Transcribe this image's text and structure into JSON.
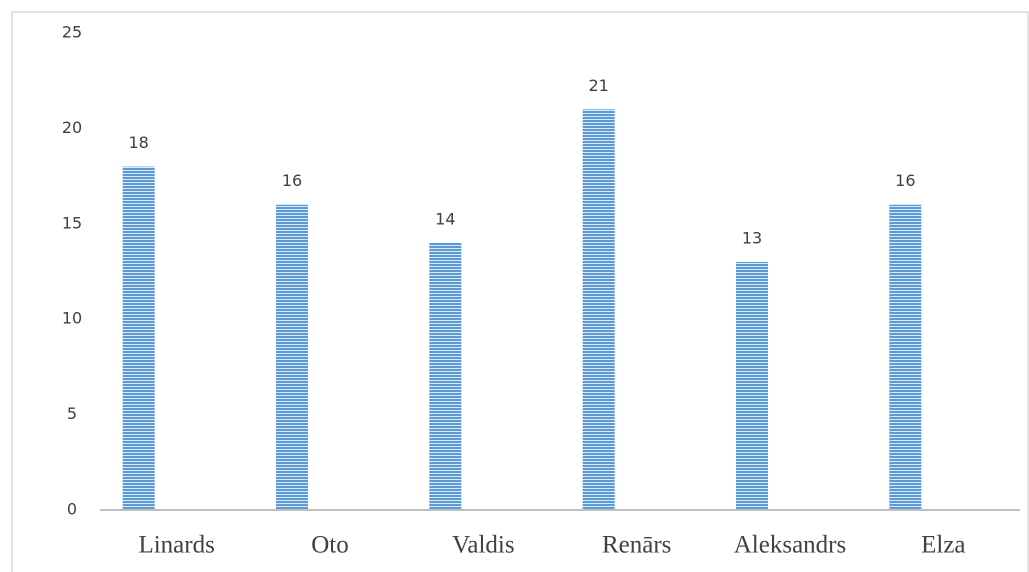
{
  "chart_data": {
    "type": "bar",
    "categories": [
      "Linards",
      "Oto",
      "Valdis",
      "Renārs",
      "Aleksandrs",
      "Elza"
    ],
    "values": [
      18,
      16,
      14,
      21,
      13,
      16
    ],
    "color": "#5b9bd5",
    "ylim": [
      0,
      25
    ],
    "yticks": [
      0,
      5,
      10,
      15,
      20,
      25
    ],
    "grid": false
  }
}
